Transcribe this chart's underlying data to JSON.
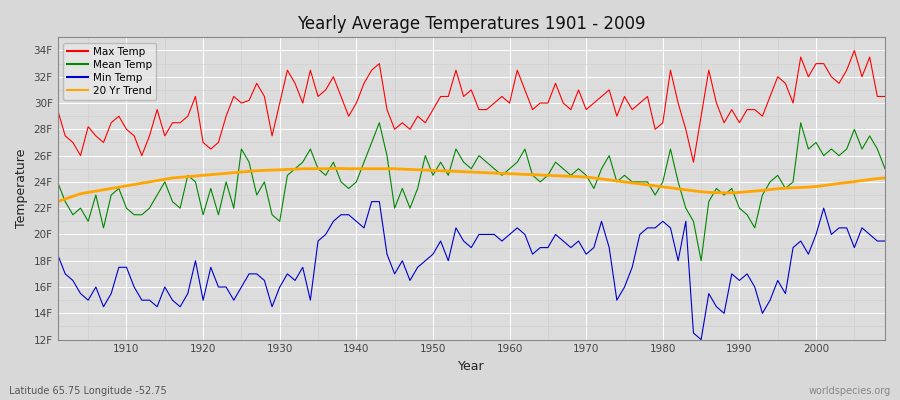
{
  "title": "Yearly Average Temperatures 1901 - 2009",
  "xlabel": "Year",
  "ylabel": "Temperature",
  "bottom_left": "Latitude 65.75 Longitude -52.75",
  "bottom_right": "worldspecies.org",
  "ylim": [
    12,
    35
  ],
  "yticks": [
    12,
    14,
    16,
    18,
    20,
    22,
    24,
    26,
    28,
    30,
    32,
    34
  ],
  "ytick_labels": [
    "12F",
    "14F",
    "16F",
    "18F",
    "20F",
    "22F",
    "24F",
    "26F",
    "28F",
    "30F",
    "32F",
    "34F"
  ],
  "xlim": [
    1901,
    2009
  ],
  "xticks": [
    1910,
    1920,
    1930,
    1940,
    1950,
    1960,
    1970,
    1980,
    1990,
    2000
  ],
  "fig_bg": "#d8d8d8",
  "plot_bg": "#dcdcdc",
  "grid_color": "#ffffff",
  "legend_entries": [
    "Max Temp",
    "Mean Temp",
    "Min Temp",
    "20 Yr Trend"
  ],
  "legend_colors": [
    "#ff0000",
    "#008800",
    "#0000cc",
    "#ffa500"
  ],
  "years": [
    1901,
    1902,
    1903,
    1904,
    1905,
    1906,
    1907,
    1908,
    1909,
    1910,
    1911,
    1912,
    1913,
    1914,
    1915,
    1916,
    1917,
    1918,
    1919,
    1920,
    1921,
    1922,
    1923,
    1924,
    1925,
    1926,
    1927,
    1928,
    1929,
    1930,
    1931,
    1932,
    1933,
    1934,
    1935,
    1936,
    1937,
    1938,
    1939,
    1940,
    1941,
    1942,
    1943,
    1944,
    1945,
    1946,
    1947,
    1948,
    1949,
    1950,
    1951,
    1952,
    1953,
    1954,
    1955,
    1956,
    1957,
    1958,
    1959,
    1960,
    1961,
    1962,
    1963,
    1964,
    1965,
    1966,
    1967,
    1968,
    1969,
    1970,
    1971,
    1972,
    1973,
    1974,
    1975,
    1976,
    1977,
    1978,
    1979,
    1980,
    1981,
    1982,
    1983,
    1984,
    1985,
    1986,
    1987,
    1988,
    1989,
    1990,
    1991,
    1992,
    1993,
    1994,
    1995,
    1996,
    1997,
    1998,
    1999,
    2000,
    2001,
    2002,
    2003,
    2004,
    2005,
    2006,
    2007,
    2008,
    2009
  ],
  "max_temp": [
    29.5,
    27.5,
    27.0,
    26.0,
    28.2,
    27.5,
    27.0,
    28.5,
    29.0,
    28.0,
    27.5,
    26.0,
    27.5,
    29.5,
    27.5,
    28.5,
    28.5,
    29.0,
    30.5,
    27.0,
    26.5,
    27.0,
    29.0,
    30.5,
    30.0,
    30.2,
    31.5,
    30.5,
    27.5,
    30.0,
    32.5,
    31.5,
    30.0,
    32.5,
    30.5,
    31.0,
    32.0,
    30.5,
    29.0,
    30.0,
    31.5,
    32.5,
    33.0,
    29.5,
    28.0,
    28.5,
    28.0,
    29.0,
    28.5,
    29.5,
    30.5,
    30.5,
    32.5,
    30.5,
    31.0,
    29.5,
    29.5,
    30.0,
    30.5,
    30.0,
    32.5,
    31.0,
    29.5,
    30.0,
    30.0,
    31.5,
    30.0,
    29.5,
    31.0,
    29.5,
    30.0,
    30.5,
    31.0,
    29.0,
    30.5,
    29.5,
    30.0,
    30.5,
    28.0,
    28.5,
    32.5,
    30.0,
    28.0,
    25.5,
    29.0,
    32.5,
    30.0,
    28.5,
    29.5,
    28.5,
    29.5,
    29.5,
    29.0,
    30.5,
    32.0,
    31.5,
    30.0,
    33.5,
    32.0,
    33.0,
    33.0,
    32.0,
    31.5,
    32.5,
    34.0,
    32.0,
    33.5,
    30.5,
    30.5
  ],
  "mean_temp": [
    24.0,
    22.5,
    21.5,
    22.0,
    21.0,
    23.0,
    20.5,
    23.0,
    23.5,
    22.0,
    21.5,
    21.5,
    22.0,
    23.0,
    24.0,
    22.5,
    22.0,
    24.5,
    24.0,
    21.5,
    23.5,
    21.5,
    24.0,
    22.0,
    26.5,
    25.5,
    23.0,
    24.0,
    21.5,
    21.0,
    24.5,
    25.0,
    25.5,
    26.5,
    25.0,
    24.5,
    25.5,
    24.0,
    23.5,
    24.0,
    25.5,
    27.0,
    28.5,
    26.0,
    22.0,
    23.5,
    22.0,
    23.5,
    26.0,
    24.5,
    25.5,
    24.5,
    26.5,
    25.5,
    25.0,
    26.0,
    25.5,
    25.0,
    24.5,
    25.0,
    25.5,
    26.5,
    24.5,
    24.0,
    24.5,
    25.5,
    25.0,
    24.5,
    25.0,
    24.5,
    23.5,
    25.0,
    26.0,
    24.0,
    24.5,
    24.0,
    24.0,
    24.0,
    23.0,
    24.0,
    26.5,
    24.0,
    22.0,
    21.0,
    18.0,
    22.5,
    23.5,
    23.0,
    23.5,
    22.0,
    21.5,
    20.5,
    23.0,
    24.0,
    24.5,
    23.5,
    24.0,
    28.5,
    26.5,
    27.0,
    26.0,
    26.5,
    26.0,
    26.5,
    28.0,
    26.5,
    27.5,
    26.5,
    25.0
  ],
  "min_temp": [
    18.5,
    17.0,
    16.5,
    15.5,
    15.0,
    16.0,
    14.5,
    15.5,
    17.5,
    17.5,
    16.0,
    15.0,
    15.0,
    14.5,
    16.0,
    15.0,
    14.5,
    15.5,
    18.0,
    15.0,
    17.5,
    16.0,
    16.0,
    15.0,
    16.0,
    17.0,
    17.0,
    16.5,
    14.5,
    16.0,
    17.0,
    16.5,
    17.5,
    15.0,
    19.5,
    20.0,
    21.0,
    21.5,
    21.5,
    21.0,
    20.5,
    22.5,
    22.5,
    18.5,
    17.0,
    18.0,
    16.5,
    17.5,
    18.0,
    18.5,
    19.5,
    18.0,
    20.5,
    19.5,
    19.0,
    20.0,
    20.0,
    20.0,
    19.5,
    20.0,
    20.5,
    20.0,
    18.5,
    19.0,
    19.0,
    20.0,
    19.5,
    19.0,
    19.5,
    18.5,
    19.0,
    21.0,
    19.0,
    15.0,
    16.0,
    17.5,
    20.0,
    20.5,
    20.5,
    21.0,
    20.5,
    18.0,
    21.0,
    12.5,
    12.0,
    15.5,
    14.5,
    14.0,
    17.0,
    16.5,
    17.0,
    16.0,
    14.0,
    15.0,
    16.5,
    15.5,
    19.0,
    19.5,
    18.5,
    20.0,
    22.0,
    20.0,
    20.5,
    20.5,
    19.0,
    20.5,
    20.0,
    19.5,
    19.5
  ],
  "trend_20yr": [
    22.5,
    22.7,
    22.9,
    23.1,
    23.2,
    23.3,
    23.4,
    23.5,
    23.6,
    23.7,
    23.8,
    23.9,
    24.0,
    24.1,
    24.2,
    24.3,
    24.35,
    24.4,
    24.45,
    24.5,
    24.55,
    24.6,
    24.65,
    24.7,
    24.75,
    24.8,
    24.85,
    24.88,
    24.9,
    24.92,
    24.95,
    24.97,
    25.0,
    25.0,
    25.0,
    25.0,
    25.02,
    25.02,
    25.0,
    25.0,
    25.0,
    25.0,
    25.0,
    25.0,
    25.0,
    24.97,
    24.95,
    24.92,
    24.9,
    24.87,
    24.85,
    24.82,
    24.8,
    24.77,
    24.75,
    24.72,
    24.7,
    24.67,
    24.65,
    24.62,
    24.6,
    24.57,
    24.55,
    24.52,
    24.5,
    24.47,
    24.45,
    24.42,
    24.4,
    24.37,
    24.3,
    24.22,
    24.15,
    24.07,
    24.0,
    23.92,
    23.85,
    23.77,
    23.7,
    23.62,
    23.55,
    23.47,
    23.4,
    23.32,
    23.25,
    23.2,
    23.18,
    23.17,
    23.17,
    23.2,
    23.25,
    23.3,
    23.35,
    23.42,
    23.48,
    23.52,
    23.55,
    23.58,
    23.6,
    23.65,
    23.72,
    23.8,
    23.88,
    23.95,
    24.02,
    24.1,
    24.18,
    24.25,
    24.3
  ]
}
